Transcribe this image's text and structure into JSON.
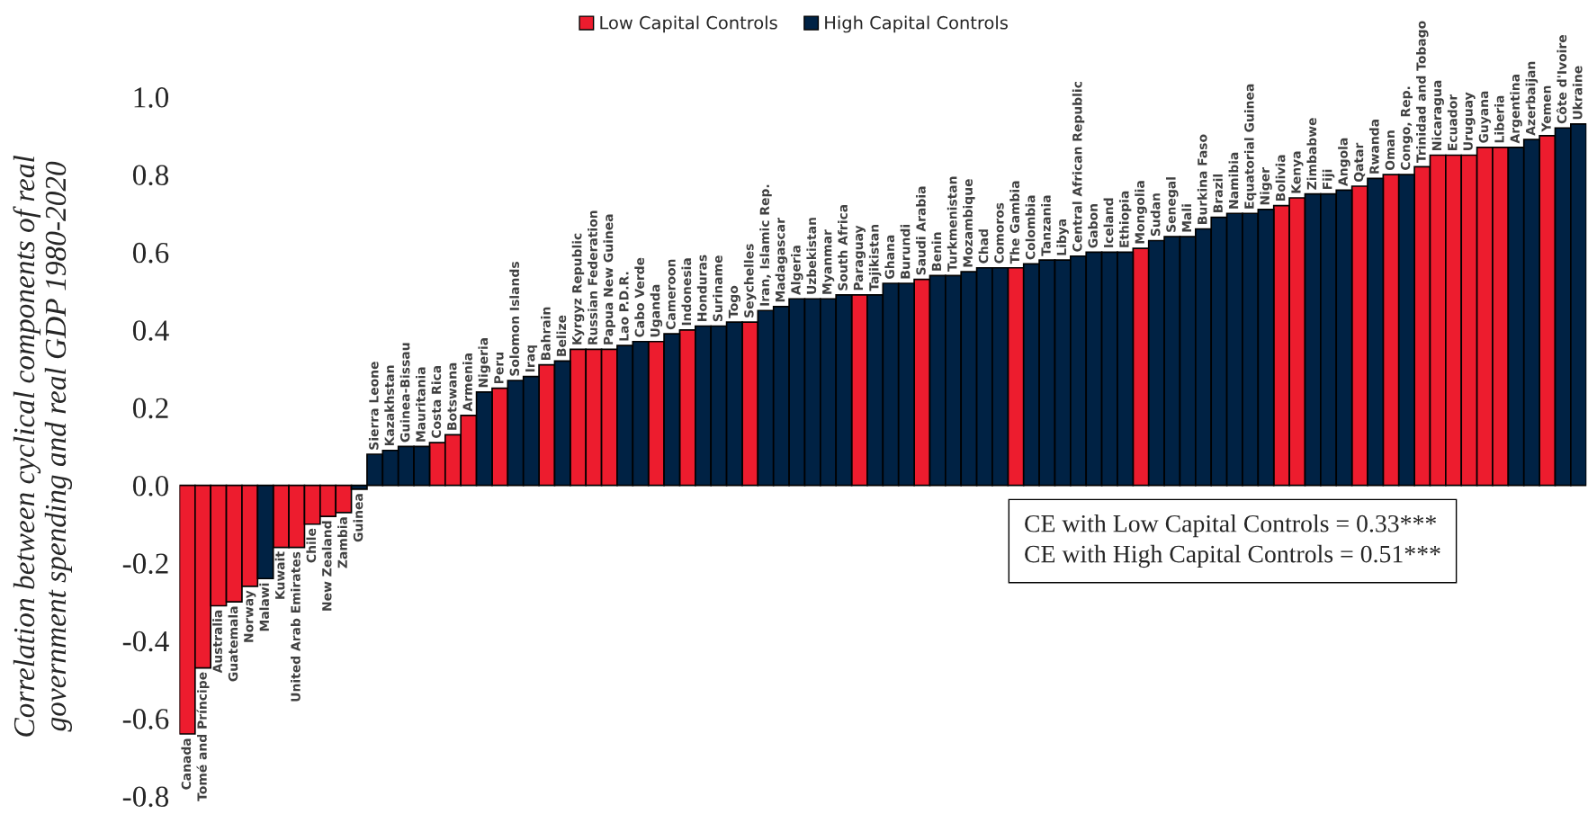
{
  "chart_data": {
    "type": "bar",
    "ylabel": "Correlation between cyclical components of real\ngovernment spending and real GDP 1980-2020",
    "categories": [
      "Canada",
      "Tomé and Príncipe",
      "Australia",
      "Guatemala",
      "Norway",
      "Malawi",
      "Kuwait",
      "United Arab Emirates",
      "Chile",
      "New Zealand",
      "Zambia",
      "Guinea",
      "Sierra Leone",
      "Kazakhstan",
      "Guinea-Bissau",
      "Mauritania",
      "Costa Rica",
      "Botswana",
      "Armenia",
      "Nigeria",
      "Peru",
      "Solomon Islands",
      "Iraq",
      "Bahrain",
      "Belize",
      "Kyrgyz Republic",
      "Russian Federation",
      "Papua New Guinea",
      "Lao P.D.R.",
      "Cabo Verde",
      "Uganda",
      "Cameroon",
      "Indonesia",
      "Honduras",
      "Suriname",
      "Togo",
      "Seychelles",
      "Iran, Islamic Rep.",
      "Madagascar",
      "Algeria",
      "Uzbekistan",
      "Myanmar",
      "South Africa",
      "Paraguay",
      "Tajikistan",
      "Ghana",
      "Burundi",
      "Saudi Arabia",
      "Benin",
      "Turkmenistan",
      "Mozambique",
      "Chad",
      "Comoros",
      "The Gambia",
      "Colombia",
      "Tanzania",
      "Libya",
      "Central African Republic",
      "Gabon",
      "Iceland",
      "Ethiopia",
      "Mongolia",
      "Sudan",
      "Senegal",
      "Mali",
      "Burkina Faso",
      "Brazil",
      "Namibia",
      "Equatorial Guinea",
      "Niger",
      "Bolivia",
      "Kenya",
      "Zimbabwe",
      "Fiji",
      "Angola",
      "Qatar",
      "Rwanda",
      "Oman",
      "Congo, Rep.",
      "Trinidad and Tobago",
      "Nicaragua",
      "Ecuador",
      "Uruguay",
      "Guyana",
      "Liberia",
      "Argentina",
      "Azerbaijan",
      "Yemen",
      "Côte d'Ivoire",
      "Ukraine"
    ],
    "series": [
      {
        "name": "Low Capital Controls",
        "color": "#ed1c2e",
        "values": [
          -0.64,
          -0.47,
          -0.31,
          -0.3,
          -0.26,
          null,
          -0.16,
          -0.16,
          -0.1,
          -0.08,
          -0.07,
          null,
          null,
          null,
          null,
          null,
          0.11,
          0.13,
          0.18,
          null,
          0.25,
          null,
          null,
          0.31,
          null,
          0.35,
          0.35,
          0.35,
          null,
          null,
          0.37,
          null,
          0.4,
          null,
          null,
          null,
          0.42,
          null,
          null,
          null,
          null,
          null,
          null,
          0.49,
          null,
          null,
          null,
          0.53,
          null,
          null,
          null,
          null,
          null,
          0.56,
          null,
          null,
          null,
          null,
          null,
          null,
          null,
          0.61,
          null,
          null,
          null,
          null,
          null,
          null,
          null,
          null,
          0.72,
          0.74,
          null,
          null,
          null,
          0.77,
          null,
          0.8,
          null,
          0.82,
          0.85,
          0.85,
          0.85,
          0.87,
          0.87,
          null,
          null,
          0.9,
          null,
          null
        ]
      },
      {
        "name": "High Capital Controls",
        "color": "#002244",
        "values": [
          null,
          null,
          null,
          null,
          null,
          -0.24,
          null,
          null,
          null,
          null,
          null,
          -0.01,
          0.08,
          0.09,
          0.1,
          0.1,
          null,
          null,
          null,
          0.24,
          null,
          0.27,
          0.28,
          null,
          0.32,
          null,
          null,
          null,
          0.36,
          0.37,
          null,
          0.39,
          null,
          0.41,
          0.41,
          0.42,
          null,
          0.45,
          0.46,
          0.48,
          0.48,
          0.48,
          0.49,
          null,
          0.49,
          0.52,
          0.52,
          null,
          0.54,
          0.54,
          0.55,
          0.56,
          0.56,
          null,
          0.57,
          0.58,
          0.58,
          0.59,
          0.6,
          0.6,
          0.6,
          null,
          0.63,
          0.64,
          0.64,
          0.66,
          0.69,
          0.7,
          0.7,
          0.71,
          null,
          null,
          0.75,
          0.75,
          0.76,
          null,
          0.79,
          null,
          0.8,
          null,
          null,
          null,
          null,
          null,
          null,
          0.87,
          0.89,
          null,
          0.92,
          0.93
        ]
      }
    ],
    "ylim": [
      -0.8,
      1.0
    ],
    "yticks": [
      {
        "value": -0.8,
        "label": "-0.8"
      },
      {
        "value": -0.6,
        "label": "-0.6"
      },
      {
        "value": -0.4,
        "label": "-0.4"
      },
      {
        "value": -0.2,
        "label": "-0.2"
      },
      {
        "value": 0,
        "label": "0.0"
      },
      {
        "value": 0.2,
        "label": "0.2"
      },
      {
        "value": 0.4,
        "label": "0.4"
      },
      {
        "value": 0.6,
        "label": "0.6"
      },
      {
        "value": 0.8,
        "label": "0.8"
      },
      {
        "value": 1.0,
        "label": "1.0"
      }
    ],
    "legend": "top",
    "grid": false,
    "annotations": [
      "CE with Low Capital Controls = 0.33***\nCE with High Capital Controls = 0.51***"
    ]
  }
}
